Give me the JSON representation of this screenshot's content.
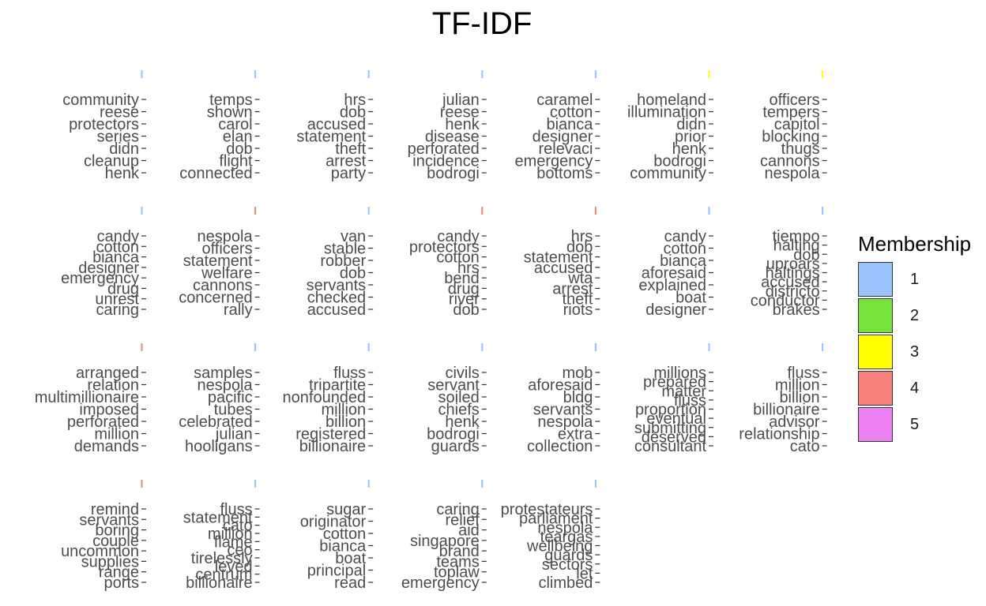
{
  "chart_data": {
    "type": "bar",
    "orientation": "horizontal",
    "layout": "small-multiples 4 rows x 7 columns",
    "title": "TF-IDF",
    "xlabel": "",
    "ylabel": "",
    "legend": {
      "title": "Membership",
      "placement": "right",
      "entries": [
        {
          "label": "1",
          "color": "#99c2ff"
        },
        {
          "label": "2",
          "color": "#77e33c"
        },
        {
          "label": "3",
          "color": "#ffff00"
        },
        {
          "label": "4",
          "color": "#f8807a"
        },
        {
          "label": "5",
          "color": "#eb81f2"
        }
      ]
    },
    "panels": [
      {
        "membership": 1,
        "terms": [
          "community",
          "reese",
          "protectors",
          "series",
          "didn",
          "cleanup",
          "henk"
        ]
      },
      {
        "membership": 1,
        "terms": [
          "temps",
          "shown",
          "carol",
          "elan",
          "dob",
          "flight",
          "connected"
        ]
      },
      {
        "membership": 1,
        "terms": [
          "hrs",
          "dob",
          "accused",
          "statement",
          "theft",
          "arrest",
          "party"
        ]
      },
      {
        "membership": 1,
        "terms": [
          "julian",
          "reese",
          "henk",
          "disease",
          "perforated",
          "incidence",
          "bodrogi"
        ]
      },
      {
        "membership": 1,
        "terms": [
          "caramel",
          "cotton",
          "bianca",
          "designer",
          "relevaci",
          "emergency",
          "bottoms"
        ]
      },
      {
        "membership": 3,
        "terms": [
          "homeland",
          "illumination",
          "didn",
          "prior",
          "henk",
          "bodrogi",
          "community"
        ]
      },
      {
        "membership": 3,
        "terms": [
          "officers",
          "tempers",
          "capitol",
          "blocking",
          "thugs",
          "cannons",
          "nespola"
        ]
      },
      {
        "membership": 1,
        "terms": [
          "candy",
          "cotton",
          "bianca",
          "designer",
          "emergency",
          "drug",
          "unrest",
          "caring"
        ]
      },
      {
        "membership": 4,
        "terms": [
          "nespola",
          "officers",
          "statement",
          "welfare",
          "cannons",
          "concerned",
          "rally"
        ]
      },
      {
        "membership": 1,
        "terms": [
          "van",
          "stable",
          "robber",
          "dob",
          "servants",
          "checked",
          "accused"
        ]
      },
      {
        "membership": 4,
        "terms": [
          "candy",
          "protectors",
          "cotton",
          "hrs",
          "bend",
          "drug",
          "river",
          "dob"
        ]
      },
      {
        "membership": 4,
        "terms": [
          "hrs",
          "dob",
          "statement",
          "accused",
          "wta",
          "arrest",
          "theft",
          "riots"
        ]
      },
      {
        "membership": 1,
        "terms": [
          "candy",
          "cotton",
          "bianca",
          "aforesaid",
          "explained",
          "boat",
          "designer"
        ]
      },
      {
        "membership": 1,
        "terms": [
          "tiempo",
          "halting",
          "dob",
          "uproars",
          "haltings",
          "accused",
          "districto",
          "conductor",
          "brakes"
        ]
      },
      {
        "membership": 4,
        "terms": [
          "arranged",
          "relation",
          "multimillionaire",
          "imposed",
          "perforated",
          "million",
          "demands"
        ]
      },
      {
        "membership": 1,
        "terms": [
          "samples",
          "nespola",
          "pacific",
          "tubes",
          "celebrated",
          "julian",
          "hooligans"
        ]
      },
      {
        "membership": 1,
        "terms": [
          "fluss",
          "tripartite",
          "nonfounded",
          "million",
          "billion",
          "registered",
          "billionaire"
        ]
      },
      {
        "membership": 1,
        "terms": [
          "civils",
          "servant",
          "soiled",
          "chiefs",
          "henk",
          "bodrogi",
          "guards"
        ]
      },
      {
        "membership": 1,
        "terms": [
          "mob",
          "aforesaid",
          "bldg",
          "servants",
          "nespola",
          "extra",
          "collection"
        ]
      },
      {
        "membership": 1,
        "terms": [
          "millions",
          "prepared",
          "matter",
          "fluss",
          "proportion",
          "eventual",
          "submitting",
          "deserved",
          "consultant"
        ]
      },
      {
        "membership": 1,
        "terms": [
          "fluss",
          "million",
          "billion",
          "billionaire",
          "advisor",
          "relationship",
          "cato"
        ]
      },
      {
        "membership": 4,
        "terms": [
          "remind",
          "servants",
          "boring",
          "couple",
          "uncommon",
          "supplies",
          "range",
          "ports"
        ]
      },
      {
        "membership": 1,
        "terms": [
          "fluss",
          "statement",
          "cato",
          "million",
          "flame",
          "ceo",
          "tirelessly",
          "leved",
          "centrum",
          "billionaire"
        ]
      },
      {
        "membership": 1,
        "terms": [
          "sugar",
          "originator",
          "cotton",
          "bianca",
          "boat",
          "principal",
          "read"
        ]
      },
      {
        "membership": 1,
        "terms": [
          "caring",
          "relief",
          "aid",
          "singapore",
          "brand",
          "teams",
          "toplaw",
          "emergency"
        ]
      },
      {
        "membership": 1,
        "terms": [
          "protestateurs",
          "parliament",
          "nespola",
          "teargas",
          "wellbeing",
          "guards",
          "sectors",
          "let",
          "climbed"
        ]
      }
    ]
  }
}
